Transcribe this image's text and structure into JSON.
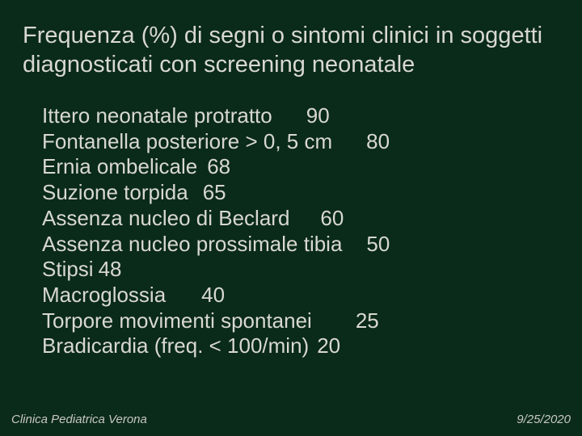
{
  "colors": {
    "background": "#0a2a1a",
    "text": "#d8d8d0",
    "footer_text": "#c8c8c0"
  },
  "typography": {
    "font_family": "Arial",
    "title_fontsize_pt": 22,
    "body_fontsize_pt": 20,
    "footer_fontsize_pt": 11,
    "footer_style": "italic"
  },
  "title": "Frequenza (%) di segni o sintomi clinici in soggetti diagnosticati con screening neonatale",
  "items": [
    {
      "label": "Ittero neonatale protratto",
      "value": "90"
    },
    {
      "label": "Fontanella posteriore > 0, 5 cm",
      "value": "80"
    },
    {
      "label": "Ernia ombelicale",
      "value": "68"
    },
    {
      "label": "Suzione torpida",
      "value": "65"
    },
    {
      "label": "Assenza nucleo di Beclard",
      "value": "60"
    },
    {
      "label": "Assenza nucleo prossimale tibia",
      "value": "50"
    },
    {
      "label": "Stipsi",
      "value": "48"
    },
    {
      "label": "Macroglossia",
      "value": "40"
    },
    {
      "label": "Torpore movimenti spontanei",
      "value": "25"
    },
    {
      "label": "Bradicardia (freq. < 100/min)",
      "value": "20"
    }
  ],
  "footer": {
    "left": "Clinica Pediatrica Verona",
    "right": "9/25/2020"
  }
}
